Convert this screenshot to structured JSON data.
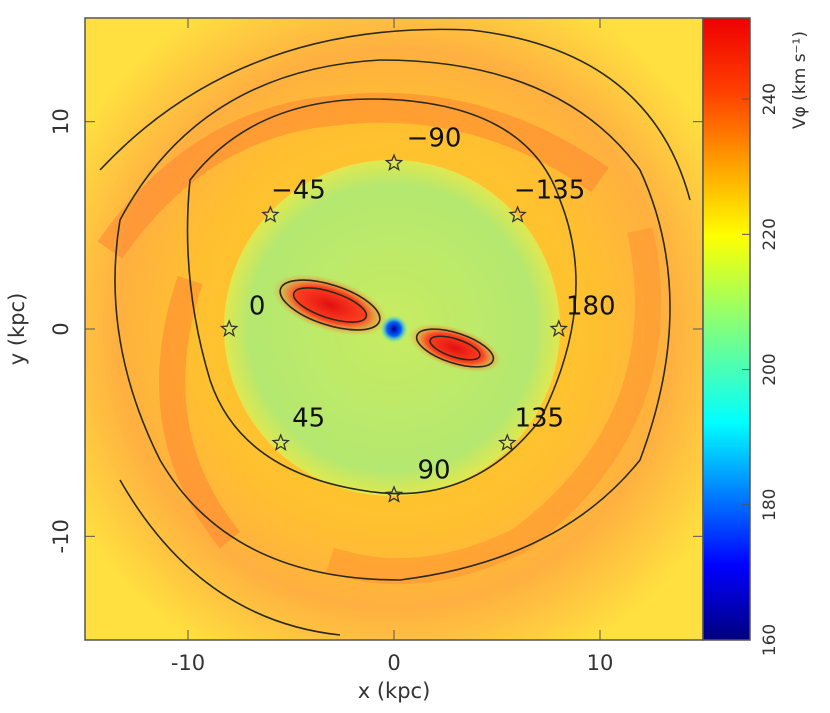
{
  "chart_data": {
    "type": "heatmap",
    "xlabel": "x (kpc)",
    "ylabel": "y (kpc)",
    "colorbar_label": "Vφ (km s⁻¹)",
    "xlim": [
      -15,
      15
    ],
    "ylim": [
      -15,
      15
    ],
    "xticks": [
      -10,
      0,
      10
    ],
    "yticks": [
      -10,
      0,
      10
    ],
    "clim": [
      160,
      252
    ],
    "cticks": [
      160,
      180,
      200,
      220,
      240
    ],
    "annotations": [
      {
        "text": "−90",
        "x": 0,
        "y": 8
      },
      {
        "text": "−45",
        "x": -6,
        "y": 5.5
      },
      {
        "text": "0",
        "x": -8,
        "y": 0
      },
      {
        "text": "45",
        "x": -5.5,
        "y": -5.5
      },
      {
        "text": "90",
        "x": 0,
        "y": -8
      },
      {
        "text": "135",
        "x": 5.5,
        "y": -5.5
      },
      {
        "text": "180",
        "x": 8,
        "y": 0
      },
      {
        "text": "−135",
        "x": 6,
        "y": 5.5
      }
    ]
  }
}
